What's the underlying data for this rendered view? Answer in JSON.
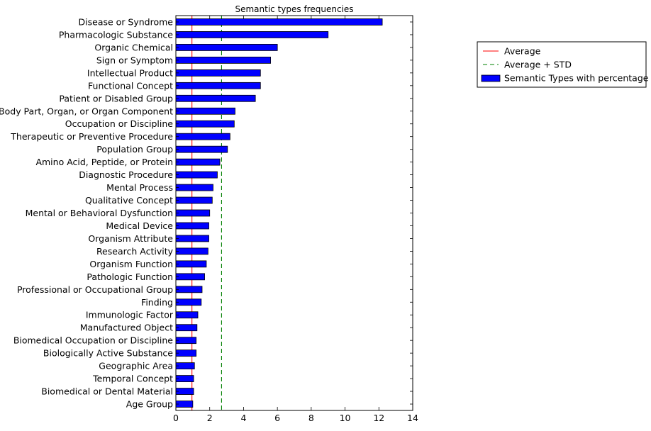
{
  "chart_data": {
    "type": "bar",
    "orientation": "horizontal",
    "title": "Semantic types frequencies",
    "xlabel": "",
    "ylabel": "",
    "xlim": [
      0,
      14
    ],
    "xticks": [
      0,
      2,
      4,
      6,
      8,
      10,
      12,
      14
    ],
    "grid": false,
    "legend_position": "outside-right",
    "categories": [
      "Disease or Syndrome",
      "Pharmacologic Substance",
      "Organic Chemical",
      "Sign or Symptom",
      "Intellectual Product",
      "Functional Concept",
      "Patient or Disabled Group",
      "Body Part, Organ, or Organ Component",
      "Occupation or Discipline",
      "Therapeutic or Preventive Procedure",
      "Population Group",
      "Amino Acid, Peptide, or Protein",
      "Diagnostic Procedure",
      "Mental Process",
      "Qualitative Concept",
      "Mental or Behavioral Dysfunction",
      "Medical Device",
      "Organism Attribute",
      "Research Activity",
      "Organism Function",
      "Pathologic Function",
      "Professional or Occupational Group",
      "Finding",
      "Immunologic Factor",
      "Manufactured Object",
      "Biomedical Occupation or Discipline",
      "Biologically Active Substance",
      "Geographic Area",
      "Temporal Concept",
      "Biomedical or Dental Material",
      "Age Group"
    ],
    "series": [
      {
        "name": "Semantic Types with percentage",
        "color": "#0000ff",
        "values": [
          12.2,
          9.0,
          6.0,
          5.6,
          5.0,
          5.0,
          4.7,
          3.5,
          3.45,
          3.2,
          3.05,
          2.6,
          2.45,
          2.2,
          2.15,
          2.0,
          1.95,
          1.95,
          1.9,
          1.8,
          1.7,
          1.55,
          1.5,
          1.3,
          1.25,
          1.2,
          1.2,
          1.1,
          1.05,
          1.05,
          1.0
        ]
      }
    ],
    "reference_lines": [
      {
        "name": "Average",
        "value": 0.95,
        "color": "#ff0000",
        "style": "solid"
      },
      {
        "name": "Average + STD",
        "value": 2.7,
        "color": "#008000",
        "style": "dashed"
      }
    ],
    "legend": [
      {
        "label": "Average",
        "kind": "line",
        "color": "#ff0000",
        "style": "solid"
      },
      {
        "label": "Average + STD",
        "kind": "line",
        "color": "#008000",
        "style": "dashed"
      },
      {
        "label": "Semantic Types with percentage",
        "kind": "patch",
        "color": "#0000ff"
      }
    ]
  }
}
